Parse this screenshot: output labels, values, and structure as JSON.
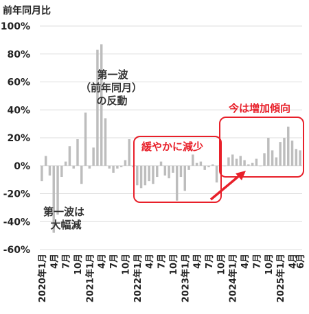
{
  "chart_data": {
    "type": "bar",
    "ylabel": "前年同月比",
    "ylim": [
      -60,
      100
    ],
    "yticks": [
      "-60%",
      "-40%",
      "-20%",
      "0%",
      "20%",
      "40%",
      "60%",
      "80%",
      "100%"
    ],
    "ytick_values": [
      -60,
      -40,
      -20,
      0,
      20,
      40,
      60,
      80,
      100
    ],
    "grid": true,
    "bar_color": "#bdbdbd",
    "accent_color": "#e8202a",
    "x_tick_labels": [
      {
        "index": 0,
        "label": "2020年1月"
      },
      {
        "index": 3,
        "label": "4月"
      },
      {
        "index": 6,
        "label": "7月"
      },
      {
        "index": 9,
        "label": "10月"
      },
      {
        "index": 12,
        "label": "2021年1月"
      },
      {
        "index": 15,
        "label": "4月"
      },
      {
        "index": 18,
        "label": "7月"
      },
      {
        "index": 21,
        "label": "10月"
      },
      {
        "index": 24,
        "label": "2022年1月"
      },
      {
        "index": 27,
        "label": "4月"
      },
      {
        "index": 30,
        "label": "7月"
      },
      {
        "index": 33,
        "label": "10月"
      },
      {
        "index": 36,
        "label": "2023年1月"
      },
      {
        "index": 39,
        "label": "4月"
      },
      {
        "index": 42,
        "label": "7月"
      },
      {
        "index": 45,
        "label": "10月"
      },
      {
        "index": 48,
        "label": "2024年1月"
      },
      {
        "index": 51,
        "label": "4月"
      },
      {
        "index": 54,
        "label": "7月"
      },
      {
        "index": 57,
        "label": "10月"
      },
      {
        "index": 60,
        "label": "2025年1月"
      },
      {
        "index": 63,
        "label": "4月"
      },
      {
        "index": 65,
        "label": "6月"
      }
    ],
    "values": [
      -11,
      7,
      -7,
      -48,
      -35,
      -8,
      3,
      14,
      -2,
      19,
      -13,
      38,
      -2,
      13,
      83,
      87,
      34,
      -2,
      -5,
      -2,
      -1,
      4,
      19,
      -1,
      -14,
      -16,
      -14,
      -11,
      -13,
      -8,
      3,
      -7,
      -9,
      -5,
      -25,
      -8,
      -18,
      -3,
      8,
      2,
      3,
      -3,
      -1,
      1,
      -12,
      -5,
      0,
      6,
      8,
      5,
      7,
      4,
      1,
      2,
      5,
      0,
      9,
      20,
      11,
      6,
      17,
      20,
      28,
      18,
      12,
      11
    ],
    "annotations": {
      "wave1_drop": [
        "第一波は",
        "大幅減"
      ],
      "wave1_rebound": [
        "第一波",
        "（前年同月）",
        "の反動"
      ],
      "moderate_decline": "緩やかに減少",
      "now_increasing": "今は増加傾向"
    }
  }
}
